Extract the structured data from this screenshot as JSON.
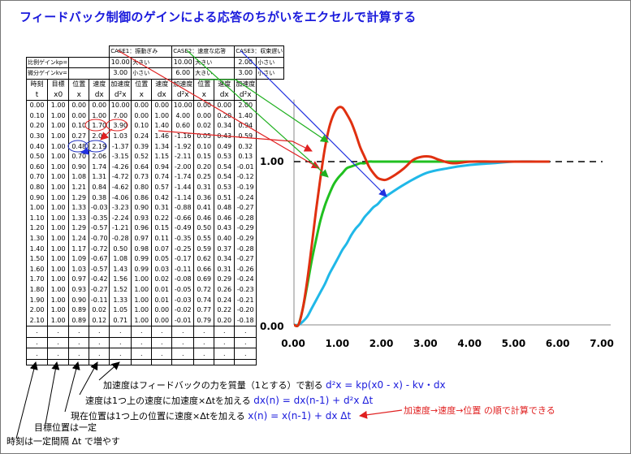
{
  "title": "フィードバック制御のゲインによる応答のちがいをエクセルで計算する",
  "table": {
    "case_headers": [
      "CASE1：振動ぎみ",
      "CASE2：速度な応答",
      "CASE3：収束遅い"
    ],
    "gain_rows": [
      {
        "label": "比例ゲインkp=",
        "c1v": "10.00",
        "c1d": "大きい",
        "c2v": "10.00",
        "c2d": "大きい",
        "c3v": "2.00",
        "c3d": "小さい"
      },
      {
        "label": "微分ゲインkv=",
        "c1v": "3.00",
        "c1d": "小さい",
        "c2v": "6.00",
        "c2d": "大きい",
        "c3v": "3.00",
        "c3d": "小さい"
      }
    ],
    "col_headers_top": [
      "時刻",
      "目標",
      "位置",
      "速度",
      "加速度",
      "位置",
      "速度",
      "加速度",
      "位置",
      "速度",
      "加速度"
    ],
    "col_headers_bottom": [
      "t",
      "x0",
      "x",
      "dx",
      "d²x",
      "x",
      "dx",
      "d²x",
      "x",
      "dx",
      "d²x"
    ],
    "rows": [
      [
        "0.00",
        "1.00",
        "0.00",
        "0.00",
        "10.00",
        "0.00",
        "0.00",
        "10.00",
        "0.00",
        "0.00",
        "2.00"
      ],
      [
        "0.10",
        "1.00",
        "0.00",
        "1.00",
        "7.00",
        "0.00",
        "1.00",
        "4.00",
        "0.00",
        "0.20",
        "1.40"
      ],
      [
        "0.20",
        "1.00",
        "0.10",
        "1.70",
        "3.90",
        "0.10",
        "1.40",
        "0.60",
        "0.02",
        "0.34",
        "0.94"
      ],
      [
        "0.30",
        "1.00",
        "0.27",
        "2.09",
        "1.03",
        "0.24",
        "1.46",
        "-1.16",
        "0.05",
        "0.43",
        "0.59"
      ],
      [
        "0.40",
        "1.00",
        "0.48",
        "2.19",
        "-1.37",
        "0.39",
        "1.34",
        "-1.92",
        "0.10",
        "0.49",
        "0.32"
      ],
      [
        "0.50",
        "1.00",
        "0.70",
        "2.06",
        "-3.15",
        "0.52",
        "1.15",
        "-2.11",
        "0.15",
        "0.53",
        "0.13"
      ],
      [
        "0.60",
        "1.00",
        "0.90",
        "1.74",
        "-4.26",
        "0.64",
        "0.94",
        "-2.00",
        "0.20",
        "0.54",
        "-0.01"
      ],
      [
        "0.70",
        "1.00",
        "1.08",
        "1.31",
        "-4.72",
        "0.73",
        "0.74",
        "-1.74",
        "0.25",
        "0.54",
        "-0.12"
      ],
      [
        "0.80",
        "1.00",
        "1.21",
        "0.84",
        "-4.62",
        "0.80",
        "0.57",
        "-1.44",
        "0.31",
        "0.53",
        "-0.19"
      ],
      [
        "0.90",
        "1.00",
        "1.29",
        "0.38",
        "-4.06",
        "0.86",
        "0.42",
        "-1.14",
        "0.36",
        "0.51",
        "-0.24"
      ],
      [
        "1.00",
        "1.00",
        "1.33",
        "-0.03",
        "-3.23",
        "0.90",
        "0.31",
        "-0.88",
        "0.41",
        "0.48",
        "-0.27"
      ],
      [
        "1.10",
        "1.00",
        "1.33",
        "-0.35",
        "-2.24",
        "0.93",
        "0.22",
        "-0.66",
        "0.46",
        "0.46",
        "-0.28"
      ],
      [
        "1.20",
        "1.00",
        "1.29",
        "-0.57",
        "-1.21",
        "0.96",
        "0.15",
        "-0.49",
        "0.50",
        "0.43",
        "-0.29"
      ],
      [
        "1.30",
        "1.00",
        "1.24",
        "-0.70",
        "-0.28",
        "0.97",
        "0.11",
        "-0.35",
        "0.55",
        "0.40",
        "-0.29"
      ],
      [
        "1.40",
        "1.00",
        "1.17",
        "-0.72",
        "0.50",
        "0.98",
        "0.07",
        "-0.25",
        "0.59",
        "0.37",
        "-0.28"
      ],
      [
        "1.50",
        "1.00",
        "1.09",
        "-0.67",
        "1.08",
        "0.99",
        "0.05",
        "-0.17",
        "0.62",
        "0.34",
        "-0.27"
      ],
      [
        "1.60",
        "1.00",
        "1.03",
        "-0.57",
        "1.43",
        "0.99",
        "0.03",
        "-0.11",
        "0.66",
        "0.31",
        "-0.26"
      ],
      [
        "1.70",
        "1.00",
        "0.97",
        "-0.42",
        "1.56",
        "1.00",
        "0.02",
        "-0.08",
        "0.69",
        "0.29",
        "-0.24"
      ],
      [
        "1.80",
        "1.00",
        "0.93",
        "-0.27",
        "1.52",
        "1.00",
        "0.01",
        "-0.05",
        "0.72",
        "0.26",
        "-0.23"
      ],
      [
        "1.90",
        "1.00",
        "0.90",
        "-0.11",
        "1.33",
        "1.00",
        "0.01",
        "-0.03",
        "0.74",
        "0.24",
        "-0.21"
      ],
      [
        "2.00",
        "1.00",
        "0.89",
        "0.02",
        "1.05",
        "1.00",
        "0.00",
        "-0.02",
        "0.77",
        "0.22",
        "-0.20"
      ],
      [
        "2.10",
        "1.00",
        "0.89",
        "0.12",
        "0.71",
        "1.00",
        "0.00",
        "-0.01",
        "0.79",
        "0.20",
        "-0.18"
      ]
    ],
    "ellipsis": "."
  },
  "chart": {
    "y_ticks": [
      "0.00",
      "1.00"
    ],
    "x_ticks": [
      "0.00",
      "1.00",
      "2.00",
      "3.00",
      "4.00",
      "5.00",
      "6.00",
      "7.00"
    ],
    "xlim": [
      0,
      7
    ],
    "ylim": [
      0,
      1.4
    ],
    "colors": {
      "case1": "#e03010",
      "case2": "#20c020",
      "case3": "#20b8e8",
      "arrow_blue": "#2030e0",
      "title": "#1a1adc"
    }
  },
  "annotations": {
    "accel_text": "加速度はフィードバックの力を質量（1とする）で割る",
    "accel_eq": "d²x = kp(x0 - x) - kv・dx",
    "vel_text": "速度は1つ上の速度に加速度×Δtを加える",
    "vel_eq": "dx(n) = dx(n-1) + d²x Δt",
    "pos_text": "現在位置は1つ上の位置に速度×Δtを加える",
    "pos_eq": "x(n) = x(n-1) + dx Δt",
    "target_text": "目標位置は一定",
    "time_text": "時刻は一定間隔 Δt で増やす",
    "order_note": "加速度→速度→位置 の順で計算できる"
  },
  "chart_data": {
    "type": "line",
    "xlabel": "",
    "ylabel": "",
    "xlim": [
      0,
      7
    ],
    "ylim": [
      0,
      1.4
    ],
    "reference_line": {
      "y": 1.0,
      "style": "dashed"
    },
    "series": [
      {
        "x": [
          0,
          0.1,
          0.2,
          0.3,
          0.4,
          0.5,
          0.6,
          0.7,
          0.8,
          0.9,
          1.0,
          1.1,
          1.2,
          1.3,
          1.4,
          1.5,
          1.6,
          1.7,
          1.8,
          1.9,
          2.0,
          2.1,
          2.3,
          2.5,
          2.7,
          2.9,
          3.1,
          3.3,
          3.6,
          4.0,
          4.5,
          5.0,
          5.8
        ],
        "values": [
          0,
          0,
          0.1,
          0.27,
          0.48,
          0.7,
          0.9,
          1.08,
          1.21,
          1.29,
          1.33,
          1.33,
          1.29,
          1.24,
          1.17,
          1.09,
          1.03,
          0.97,
          0.93,
          0.9,
          0.89,
          0.89,
          0.92,
          0.96,
          1.01,
          1.03,
          1.03,
          1.01,
          0.99,
          1.0,
          1.0,
          1.0,
          1.0
        ]
      },
      {
        "x": [
          0,
          0.1,
          0.2,
          0.3,
          0.4,
          0.5,
          0.6,
          0.7,
          0.8,
          0.9,
          1.0,
          1.1,
          1.2,
          1.3,
          1.4,
          1.5,
          1.6,
          1.7,
          1.8,
          2.0,
          2.5,
          3.0,
          4.0,
          5.0,
          5.8
        ],
        "values": [
          0,
          0,
          0.1,
          0.24,
          0.39,
          0.52,
          0.64,
          0.73,
          0.8,
          0.86,
          0.9,
          0.93,
          0.96,
          0.97,
          0.98,
          0.99,
          0.99,
          1.0,
          1.0,
          1.0,
          1.0,
          1.0,
          1.0,
          1.0,
          1.0
        ]
      },
      {
        "x": [
          0,
          0.1,
          0.2,
          0.3,
          0.4,
          0.5,
          0.6,
          0.7,
          0.8,
          0.9,
          1.0,
          1.1,
          1.2,
          1.3,
          1.4,
          1.5,
          1.6,
          1.7,
          1.8,
          1.9,
          2.0,
          2.1,
          2.5,
          3.0,
          3.5,
          4.0,
          4.5,
          5.0,
          5.5,
          5.8
        ],
        "values": [
          0,
          0,
          0.02,
          0.05,
          0.1,
          0.15,
          0.2,
          0.25,
          0.31,
          0.36,
          0.41,
          0.46,
          0.5,
          0.55,
          0.59,
          0.62,
          0.66,
          0.69,
          0.72,
          0.74,
          0.77,
          0.79,
          0.86,
          0.93,
          0.96,
          0.98,
          0.99,
          1.0,
          1.0,
          1.0
        ]
      }
    ]
  }
}
